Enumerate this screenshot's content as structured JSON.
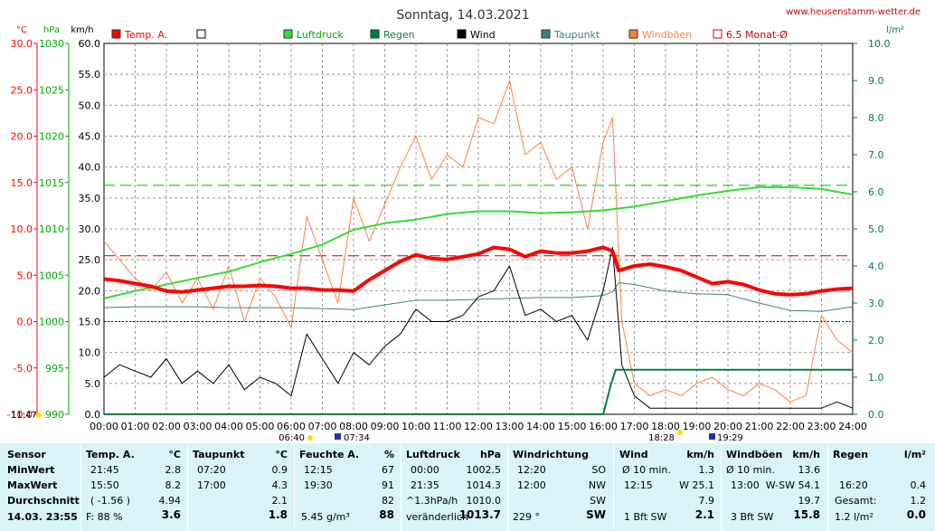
{
  "header": {
    "title": "Sonntag, 14.03.2021",
    "url": "www.heusenstamm-wetter.de",
    "time": "11:47"
  },
  "axes": {
    "unit_temp": "°C",
    "unit_hpa": "hPa",
    "unit_kmh": "km/h",
    "unit_rain": "l/m²",
    "temp_ticks": [
      "30.0",
      "25.0",
      "20.0",
      "15.0",
      "10.0",
      "5.0",
      "0.0",
      "-5.0",
      "-10.0"
    ],
    "hpa_ticks": [
      "1030",
      "1025",
      "1020",
      "1015",
      "1010",
      "1005",
      "1000",
      "995",
      "990"
    ],
    "kmh_ticks": [
      "60.0",
      "55.0",
      "50.0",
      "45.0",
      "40.0",
      "35.0",
      "30.0",
      "25.0",
      "20.0",
      "15.0",
      "10.0",
      "5.0",
      "0.0"
    ],
    "rain_ticks": [
      "10.0",
      "9.0",
      "8.0",
      "7.0",
      "6.0",
      "5.0",
      "4.0",
      "3.0",
      "2.0",
      "1.0",
      "0.0"
    ],
    "x_ticks": [
      "00:00",
      "01:00",
      "02:00",
      "03:00",
      "04:00",
      "05:00",
      "06:00",
      "07:00",
      "08:00",
      "09:00",
      "10:00",
      "11:00",
      "12:00",
      "13:00",
      "14:00",
      "15:00",
      "16:00",
      "17:00",
      "18:00",
      "19:00",
      "20:00",
      "21:00",
      "22:00",
      "23:00",
      "24:00"
    ]
  },
  "sun": {
    "sunrise_twilight": "06:40",
    "sunrise": "07:34",
    "sunset": "18:28",
    "sunset_twilight": "19:29"
  },
  "legend": [
    {
      "label": "Temp. A.",
      "color": "#ff0000",
      "filled": true
    },
    {
      "label": "",
      "color": "#000000",
      "filled": false
    },
    {
      "label": "Luftdruck",
      "color": "#33dd33",
      "filled": true
    },
    {
      "label": "Regen",
      "color": "#008040",
      "filled": true
    },
    {
      "label": "Wind",
      "color": "#000000",
      "filled": true
    },
    {
      "label": "Taupunkt",
      "color": "#408080",
      "filled": true
    },
    {
      "label": "Windböen",
      "color": "#ff8040",
      "filled": true
    },
    {
      "label": "6.5 Monat-Ø",
      "color": "#cc0000",
      "filled": false
    }
  ],
  "chart_data": {
    "type": "line",
    "title": "Sonntag, 14.03.2021",
    "x_unit": "hours",
    "x_range": [
      0,
      24
    ],
    "ylim_temp": [
      -10,
      30
    ],
    "ylim_hpa": [
      990,
      1030
    ],
    "ylim_kmh": [
      0,
      60
    ],
    "ylim_rain": [
      0,
      10
    ],
    "reference_lines": {
      "luftdruck_6_5_monat_avg_hpa": 1014.7,
      "temp_6_5_monat_avg_c": 7.1,
      "freezing_c": 0
    },
    "series": [
      {
        "name": "Temp. A.",
        "unit": "°C",
        "color": "#ff0000",
        "x": [
          0,
          0.5,
          1,
          1.5,
          2,
          2.5,
          3,
          3.5,
          4,
          4.5,
          5,
          5.5,
          6,
          6.5,
          7,
          7.5,
          8,
          8.5,
          9,
          9.5,
          10,
          10.5,
          11,
          11.5,
          12,
          12.5,
          13,
          13.5,
          14,
          14.5,
          15,
          15.5,
          16,
          16.3,
          16.5,
          17,
          17.5,
          18,
          18.5,
          19,
          19.5,
          20,
          20.5,
          21,
          21.5,
          22,
          22.5,
          23,
          23.5,
          24
        ],
        "values": [
          4.6,
          4.4,
          4.1,
          3.8,
          3.3,
          3.2,
          3.4,
          3.6,
          3.8,
          3.8,
          3.9,
          3.8,
          3.6,
          3.6,
          3.4,
          3.4,
          3.3,
          4.5,
          5.5,
          6.5,
          7.2,
          6.8,
          6.7,
          7.0,
          7.3,
          8.0,
          7.8,
          7.0,
          7.6,
          7.4,
          7.4,
          7.6,
          8.0,
          7.6,
          5.5,
          6.0,
          6.2,
          5.9,
          5.5,
          4.8,
          4.1,
          4.3,
          4.0,
          3.4,
          3.0,
          2.9,
          3.0,
          3.3,
          3.5,
          3.6
        ]
      },
      {
        "name": "Luftdruck",
        "unit": "hPa",
        "color": "#33dd33",
        "x": [
          0,
          1,
          2,
          3,
          4,
          5,
          6,
          7,
          8,
          9,
          10,
          11,
          12,
          13,
          14,
          15,
          16,
          17,
          18,
          19,
          20,
          21,
          22,
          23,
          24
        ],
        "values": [
          1002.5,
          1003.3,
          1004.0,
          1004.7,
          1005.4,
          1006.4,
          1007.3,
          1008.3,
          1009.9,
          1010.6,
          1011.0,
          1011.6,
          1011.9,
          1011.9,
          1011.7,
          1011.8,
          1012.0,
          1012.4,
          1013.0,
          1013.6,
          1014.1,
          1014.5,
          1014.5,
          1014.3,
          1013.7
        ]
      },
      {
        "name": "Taupunkt",
        "unit": "°C",
        "color": "#408080",
        "x": [
          0,
          1,
          2,
          3,
          4,
          5,
          6,
          7,
          8,
          9,
          10,
          11,
          12,
          13,
          14,
          15,
          16,
          16.3,
          16.5,
          17,
          18,
          19,
          20,
          21,
          22,
          23,
          24
        ],
        "values": [
          1.5,
          1.6,
          1.6,
          1.6,
          1.5,
          1.5,
          1.5,
          1.4,
          1.3,
          1.8,
          2.3,
          2.3,
          2.4,
          2.5,
          2.6,
          2.6,
          2.8,
          3.2,
          4.2,
          4.0,
          3.3,
          3.0,
          2.9,
          2.0,
          1.2,
          1.1,
          1.6
        ]
      },
      {
        "name": "Wind",
        "unit": "km/h",
        "color": "#000000",
        "x": [
          0,
          0.5,
          1,
          1.5,
          2,
          2.5,
          3,
          3.5,
          4,
          4.5,
          5,
          5.5,
          6,
          6.5,
          7,
          7.5,
          8,
          8.5,
          9,
          9.5,
          10,
          10.5,
          11,
          11.5,
          12,
          12.5,
          13,
          13.5,
          14,
          14.5,
          15,
          15.5,
          16,
          16.3,
          16.6,
          17,
          17.5,
          18,
          18.5,
          19,
          19.5,
          20,
          20.5,
          21,
          21.5,
          22,
          22.5,
          23,
          23.5,
          24
        ],
        "values": [
          6,
          8,
          7,
          6,
          9,
          5,
          7,
          5,
          8,
          4,
          6,
          5,
          3,
          13,
          9,
          5,
          10,
          8,
          11,
          13,
          17,
          15,
          15,
          16,
          19,
          20,
          24,
          16,
          17,
          15,
          16,
          12,
          20,
          27,
          8,
          3,
          1,
          1,
          1,
          1,
          1,
          1,
          1,
          1,
          1,
          1,
          1,
          1,
          2,
          1
        ]
      },
      {
        "name": "Windböen",
        "unit": "km/h",
        "color": "#ff8040",
        "x": [
          0,
          0.5,
          1,
          1.5,
          2,
          2.5,
          3,
          3.5,
          4,
          4.5,
          5,
          5.5,
          6,
          6.5,
          7,
          7.5,
          8,
          8.5,
          9,
          9.5,
          10,
          10.5,
          11,
          11.5,
          12,
          12.5,
          13,
          13.5,
          14,
          14.5,
          15,
          15.5,
          16,
          16.3,
          16.6,
          17,
          17.5,
          18,
          18.5,
          19,
          19.5,
          20,
          20.5,
          21,
          21.5,
          22,
          22.5,
          23,
          23.5,
          24
        ],
        "values": [
          28,
          25,
          22,
          20,
          23,
          18,
          22,
          17,
          24,
          15,
          22,
          19,
          14,
          32,
          25,
          18,
          35,
          28,
          34,
          40,
          45,
          38,
          42,
          40,
          48,
          47,
          54,
          42,
          44,
          38,
          40,
          30,
          44,
          48,
          15,
          5,
          3,
          4,
          3,
          5,
          6,
          4,
          3,
          5,
          4,
          2,
          3,
          16,
          12,
          10
        ]
      },
      {
        "name": "Regen",
        "unit": "l/m²",
        "color": "#008040",
        "x": [
          0,
          16,
          16.25,
          16.4,
          17,
          18,
          19,
          20,
          21,
          22,
          23,
          24
        ],
        "values": [
          0,
          0,
          0.8,
          1.2,
          1.2,
          1.2,
          1.2,
          1.2,
          1.2,
          1.2,
          1.2,
          1.2
        ]
      }
    ]
  },
  "table": [
    {
      "header": "Sensor",
      "rows": [
        "MinWert",
        "MaxWert",
        "Durchschnitt"
      ],
      "footer": "14.03. 23:55"
    },
    {
      "header": "Temp. A.",
      "unit": "°C",
      "rows": [
        [
          "21:45",
          "2.8"
        ],
        [
          "15:50",
          "8.2"
        ],
        [
          "( -1.56 )",
          "4.94"
        ]
      ],
      "footer": [
        "F: 88 %",
        "3.6"
      ]
    },
    {
      "header": "Taupunkt",
      "unit": "°C",
      "rows": [
        [
          "07:20",
          "0.9"
        ],
        [
          "17:00",
          "4.3"
        ],
        [
          "",
          "2.1"
        ]
      ],
      "footer": [
        "",
        "1.8"
      ]
    },
    {
      "header": "Feuchte A.",
      "unit": "%",
      "rows": [
        [
          "12:15",
          "67"
        ],
        [
          "19:30",
          "91"
        ],
        [
          "",
          "82"
        ]
      ],
      "footer": [
        "5.45 g/m³",
        "88"
      ]
    },
    {
      "header": "Luftdruck",
      "unit": "hPa",
      "rows": [
        [
          "00:00",
          "1002.5"
        ],
        [
          "21:35",
          "1014.3"
        ],
        [
          "^1.3hPa/h",
          "1010.0"
        ]
      ],
      "footer": [
        "veränderlich",
        "1013.7"
      ]
    },
    {
      "header": "Windrichtung",
      "unit": "",
      "rows": [
        [
          "12:20",
          "SO"
        ],
        [
          "12:00",
          "NW"
        ],
        [
          "",
          "SW"
        ]
      ],
      "footer": [
        "229 °",
        "SW"
      ]
    },
    {
      "header": "Wind",
      "unit": "km/h",
      "rows": [
        [
          "Ø 10 min.",
          "1.3"
        ],
        [
          "12:15",
          "W 25.1"
        ],
        [
          "",
          "7.9"
        ]
      ],
      "footer": [
        "1 Bft SW",
        "2.1"
      ]
    },
    {
      "header": "Windböen",
      "unit": "km/h",
      "rows": [
        [
          "Ø 10 min.",
          "13.6"
        ],
        [
          "13:00",
          "W-SW 54.1"
        ],
        [
          "",
          "19.7"
        ]
      ],
      "footer": [
        "3 Bft SW",
        "15.8"
      ]
    },
    {
      "header": "Regen",
      "unit": "l/m²",
      "rows": [
        [
          "",
          ""
        ],
        [
          "16:20",
          "0.4"
        ],
        [
          "Gesamt:",
          "1.2"
        ]
      ],
      "footer": [
        "1.2 l/m²",
        "0.0"
      ]
    }
  ]
}
